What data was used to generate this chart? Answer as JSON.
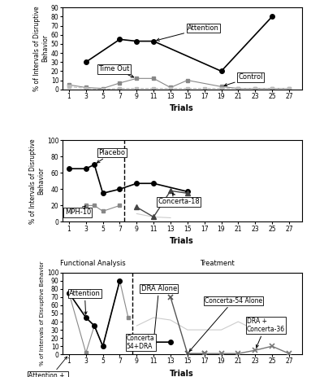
{
  "panel1": {
    "attention": {
      "x": [
        3,
        7,
        9,
        11,
        19,
        25
      ],
      "y": [
        30,
        55,
        53,
        53,
        20,
        80
      ]
    },
    "timeout": {
      "x": [
        1,
        3,
        5,
        7,
        9,
        11,
        13,
        15,
        19,
        21,
        23,
        25,
        27
      ],
      "y": [
        5,
        2,
        1,
        7,
        12,
        12,
        2,
        10,
        3,
        1,
        1,
        1,
        1
      ]
    },
    "control": {
      "x": [
        1,
        3,
        5,
        7,
        9,
        11,
        13,
        15,
        17,
        19,
        21,
        23,
        25,
        27
      ],
      "y": [
        3,
        1,
        0,
        1,
        1,
        1,
        1,
        1,
        1,
        1,
        1,
        1,
        1,
        1
      ]
    },
    "ylim": [
      0,
      90
    ],
    "yticks": [
      0,
      10,
      20,
      30,
      40,
      50,
      60,
      70,
      80,
      90
    ],
    "xticks": [
      1,
      3,
      5,
      7,
      9,
      11,
      13,
      15,
      17,
      19,
      21,
      23,
      25,
      27
    ]
  },
  "panel2": {
    "placebo": {
      "x": [
        1,
        3,
        4,
        5,
        7,
        9,
        11,
        15
      ],
      "y": [
        65,
        65,
        70,
        35,
        40,
        47,
        47,
        37
      ]
    },
    "mph10": {
      "x": [
        3,
        4,
        5,
        7
      ],
      "y": [
        20,
        20,
        13,
        20
      ]
    },
    "concerta18": {
      "x": [
        9,
        11,
        13,
        15
      ],
      "y": [
        18,
        6,
        38,
        35
      ]
    },
    "ghost": {
      "x": [
        9,
        11,
        13
      ],
      "y": [
        10,
        6,
        5
      ]
    },
    "dashed_x": 7.5,
    "ylim": [
      0,
      100
    ],
    "yticks": [
      0,
      20,
      40,
      60,
      80,
      100
    ],
    "xticks": [
      1,
      3,
      5,
      7,
      9,
      11,
      13,
      15,
      17,
      19,
      21,
      23,
      25,
      27
    ]
  },
  "panel3": {
    "attention_black": {
      "x": [
        1,
        3,
        4,
        5,
        7
      ],
      "y": [
        75,
        45,
        35,
        10,
        90
      ]
    },
    "att_concerta36_gray": {
      "x": [
        1,
        3,
        4,
        5,
        7,
        8
      ],
      "y": [
        75,
        2,
        35,
        10,
        90,
        45
      ]
    },
    "concerta54_dra": {
      "x": [
        9,
        11,
        13
      ],
      "y": [
        20,
        15,
        15
      ]
    },
    "concerta54_alone": {
      "x": [
        13,
        15,
        17
      ],
      "y": [
        70,
        1,
        1
      ]
    },
    "dra_concerta36": {
      "x": [
        17,
        19,
        21,
        23,
        25,
        27
      ],
      "y": [
        1,
        1,
        1,
        5,
        10,
        1
      ]
    },
    "ghost": {
      "x": [
        9,
        11,
        13,
        15,
        19,
        21,
        23
      ],
      "y": [
        35,
        45,
        42,
        30,
        30,
        40,
        30
      ]
    },
    "dashed_x": 8.5,
    "ylim": [
      0,
      100
    ],
    "yticks": [
      0,
      10,
      20,
      30,
      40,
      50,
      60,
      70,
      80,
      90,
      100
    ],
    "xticks": [
      1,
      3,
      5,
      7,
      9,
      11,
      13,
      15,
      17,
      19,
      21,
      23,
      25,
      27
    ]
  },
  "xlabel": "Trials",
  "bbox_fc": "white",
  "bbox_ec": "black"
}
